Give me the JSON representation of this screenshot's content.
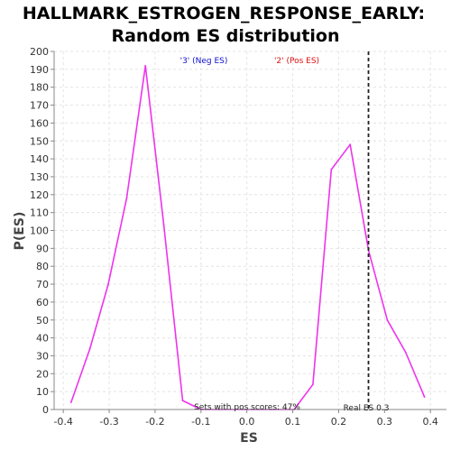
{
  "chart_data": {
    "type": "line",
    "title_line1": "HALLMARK_ESTROGEN_RESPONSE_EARLY:",
    "title_line2": "Random ES distribution",
    "xlabel": "ES",
    "ylabel": "P(ES)",
    "xlim": [
      -0.42,
      0.435
    ],
    "ylim": [
      0,
      200
    ],
    "xticks": [
      -0.4,
      -0.3,
      -0.2,
      -0.1,
      0.0,
      0.1,
      0.2,
      0.3,
      0.4
    ],
    "xtick_labels": [
      "-0.4",
      "-0.3",
      "-0.2",
      "-0.1",
      "0.0",
      "0.1",
      "0.2",
      "0.3",
      "0.4"
    ],
    "yticks": [
      0,
      10,
      20,
      30,
      40,
      50,
      60,
      70,
      80,
      90,
      100,
      110,
      120,
      130,
      140,
      150,
      160,
      170,
      180,
      190,
      200
    ],
    "grid": true,
    "series": [
      {
        "color": "#ee33ee",
        "x": [
          -0.383,
          -0.342,
          -0.302,
          -0.262,
          -0.221,
          -0.181,
          -0.14,
          -0.1,
          -0.06,
          0.103,
          0.144,
          0.184,
          0.225,
          0.265,
          0.306,
          0.346,
          0.387
        ],
        "y": [
          4,
          34,
          70,
          118,
          192,
          103,
          5,
          0,
          0,
          0,
          14,
          134,
          148,
          89,
          50,
          32,
          7
        ]
      }
    ],
    "legend": [
      {
        "label": "'3' (Neg ES)",
        "color": "#1010cc"
      },
      {
        "label": "'2' (Pos ES)",
        "color": "#dd1111"
      }
    ],
    "real_es": 0.265,
    "annotations": {
      "pos_scores": "Sets with pos scores: 47%",
      "real_es": "Real ES 0.3"
    }
  }
}
